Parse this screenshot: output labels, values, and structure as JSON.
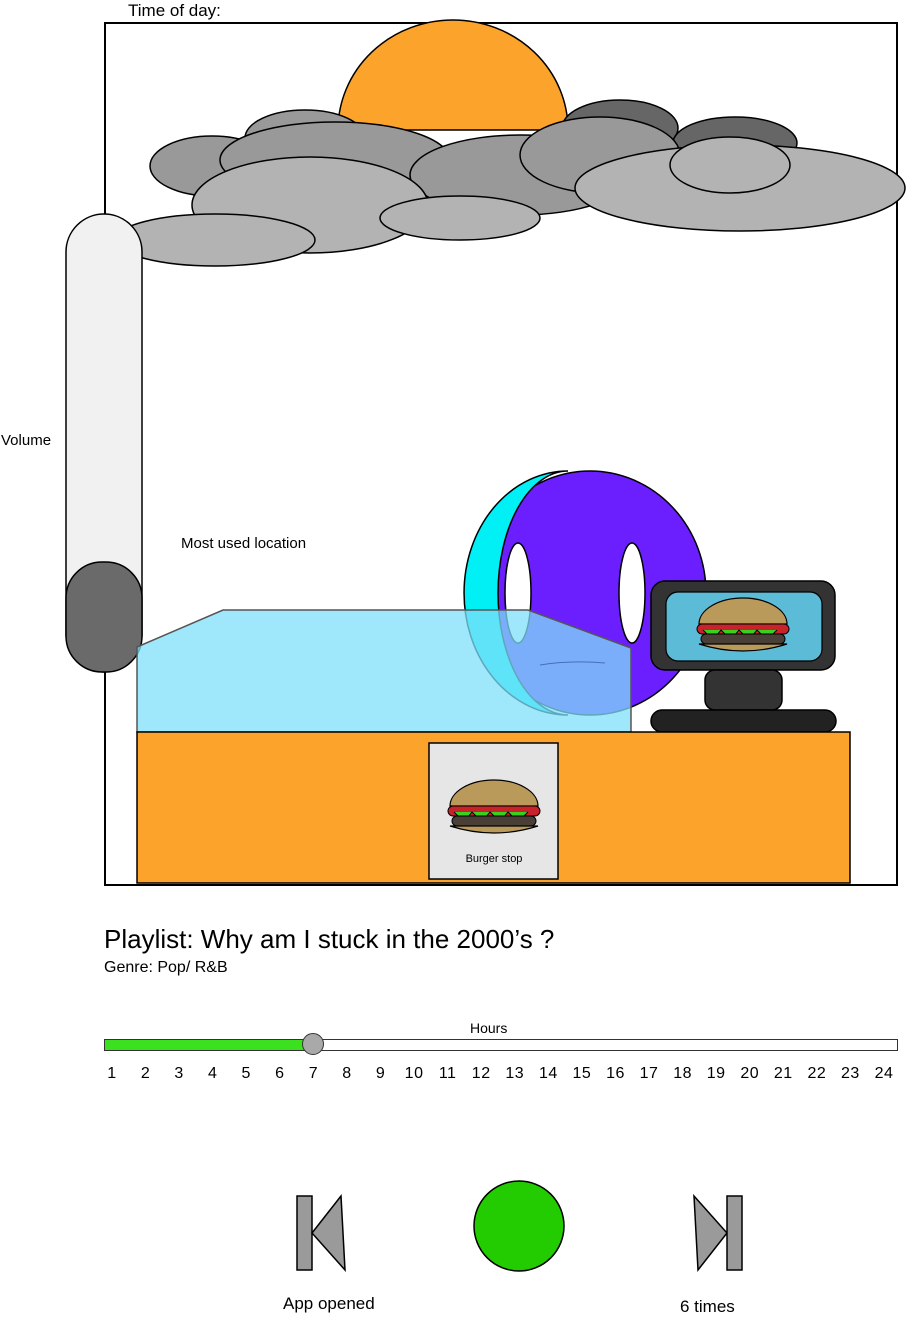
{
  "scene": {
    "time_of_day_label": "Time of day:",
    "volume_label": "Volume",
    "volume_level": 0.2,
    "most_used_location_label": "Most used location",
    "sign_text": "Burger stop"
  },
  "playlist": {
    "title": "Playlist: Why am I stuck in the 2000’s ?",
    "genre": "Genre: Pop/ R&B"
  },
  "hours": {
    "label": "Hours",
    "ticks": [
      "1",
      "2",
      "3",
      "4",
      "5",
      "6",
      "7",
      "8",
      "9",
      "10",
      "11",
      "12",
      "13",
      "14",
      "15",
      "16",
      "17",
      "18",
      "19",
      "20",
      "21",
      "22",
      "23",
      "24"
    ],
    "current": 7
  },
  "controls": {
    "prev_icon": "skip-previous-icon",
    "play_icon": "play-circle-icon",
    "next_icon": "skip-next-icon",
    "left_caption": "App opened",
    "right_caption": "6 times"
  },
  "colors": {
    "sun": "#fca32b",
    "counter": "#fca32b",
    "glass": "#7fdffa",
    "progress": "#3be01f",
    "play": "#22cc00",
    "volume_fill": "#6a6a6a"
  }
}
